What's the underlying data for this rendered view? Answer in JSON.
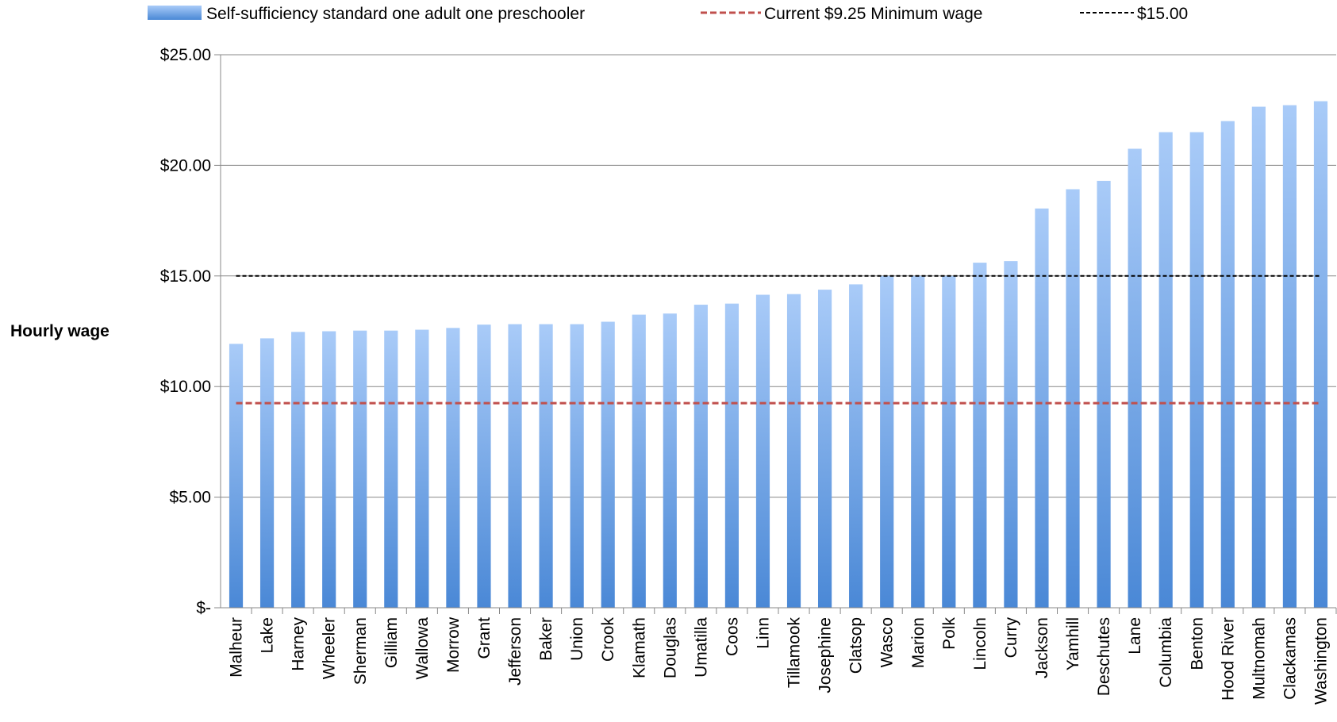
{
  "legend": {
    "items": [
      {
        "label": "Self-sufficiency standard one adult one preschooler",
        "kind": "bar"
      },
      {
        "label": "Current $9.25 Minimum wage",
        "kind": "dashed-red"
      },
      {
        "label": "$15.00",
        "kind": "dashed-black"
      }
    ]
  },
  "chart_data": {
    "type": "bar",
    "ylabel": "Hourly wage",
    "ylim": [
      0,
      25
    ],
    "ytick_values": [
      0,
      5,
      10,
      15,
      20,
      25
    ],
    "ytick_labels": [
      "$-",
      "$5.00",
      "$10.00",
      "$15.00",
      "$20.00",
      "$25.00"
    ],
    "categories": [
      "Malheur",
      "Lake",
      "Harney",
      "Wheeler",
      "Sherman",
      "Gilliam",
      "Wallowa",
      "Morrow",
      "Grant",
      "Jefferson",
      "Baker",
      "Union",
      "Crook",
      "Klamath",
      "Douglas",
      "Umatilla",
      "Coos",
      "Linn",
      "Tillamook",
      "Josephine",
      "Clatsop",
      "Wasco",
      "Marion",
      "Polk",
      "Lincoln",
      "Curry",
      "Jackson",
      "Yamhill",
      "Deschutes",
      "Lane",
      "Columbia",
      "Benton",
      "Hood River",
      "Multnomah",
      "Clackamas",
      "Washington"
    ],
    "series": [
      {
        "name": "Self-sufficiency standard one adult one preschooler",
        "values": [
          11.93,
          12.18,
          12.47,
          12.5,
          12.53,
          12.53,
          12.57,
          12.65,
          12.8,
          12.82,
          12.82,
          12.82,
          12.93,
          13.25,
          13.3,
          13.7,
          13.75,
          14.15,
          14.18,
          14.38,
          14.62,
          15.0,
          15.0,
          15.0,
          15.6,
          15.67,
          18.05,
          18.92,
          19.3,
          20.75,
          21.5,
          21.5,
          22.0,
          22.65,
          22.72,
          22.9
        ],
        "color": "#4a88d6"
      },
      {
        "name": "Current $9.25 Minimum wage",
        "constant": 9.25,
        "color": "#c0504d"
      },
      {
        "name": "$15.00",
        "constant": 15.0,
        "color": "#000000"
      }
    ],
    "grid": true,
    "legend_position": "top"
  }
}
